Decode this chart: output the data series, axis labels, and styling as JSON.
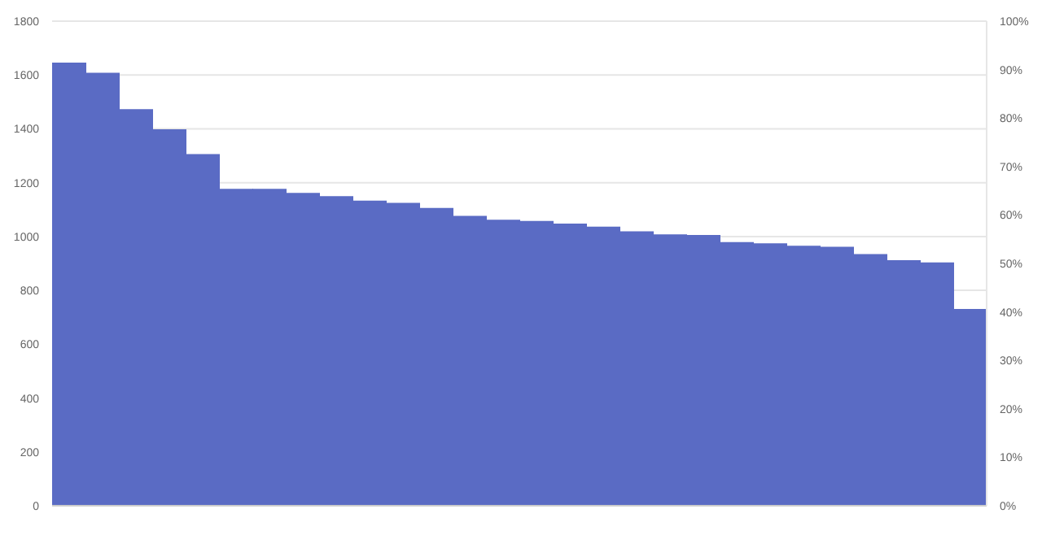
{
  "chart_data": {
    "type": "bar",
    "categories": [
      null,
      null,
      null,
      null,
      null,
      null,
      null,
      null,
      null,
      null,
      null,
      null,
      null,
      null,
      null,
      null,
      null,
      null,
      null,
      null,
      null,
      null,
      null,
      null,
      null,
      null,
      null,
      null
    ],
    "values": [
      1646,
      1608,
      1473,
      1398,
      1306,
      1177,
      1177,
      1162,
      1150,
      1133,
      1125,
      1106,
      1077,
      1062,
      1058,
      1048,
      1037,
      1019,
      1008,
      1006,
      979,
      975,
      966,
      962,
      935,
      912,
      904,
      731
    ],
    "color": "#5a6bc4",
    "ylim": [
      0,
      1800
    ],
    "yticks": [
      0,
      200,
      400,
      600,
      800,
      1000,
      1200,
      1400,
      1600,
      1800
    ],
    "y2lim": [
      0,
      100
    ],
    "y2ticks": [
      {
        "value": 0,
        "label": "0%"
      },
      {
        "value": 10,
        "label": "10%"
      },
      {
        "value": 20,
        "label": "20%"
      },
      {
        "value": 30,
        "label": "30%"
      },
      {
        "value": 40,
        "label": "40%"
      },
      {
        "value": 50,
        "label": "50%"
      },
      {
        "value": 60,
        "label": "60%"
      },
      {
        "value": 70,
        "label": "70%"
      },
      {
        "value": 80,
        "label": "80%"
      },
      {
        "value": 90,
        "label": "90%"
      },
      {
        "value": 100,
        "label": "100%"
      }
    ],
    "grid": "y"
  }
}
